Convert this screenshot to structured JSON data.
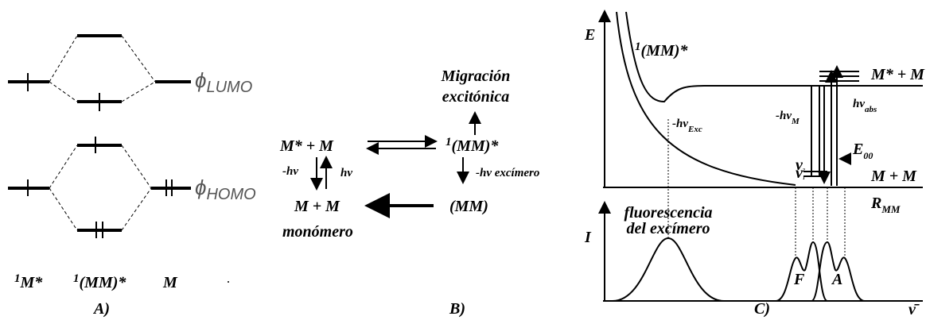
{
  "panel_a": {
    "label": "A)",
    "lumo": {
      "symbol": "ϕ",
      "sub": "LUMO"
    },
    "homo": {
      "symbol": "ϕ",
      "sub": "HOMO"
    },
    "columns": [
      {
        "sup": "1",
        "text": "M*"
      },
      {
        "sup": "1",
        "text": "(MM)*"
      },
      {
        "text": "M"
      }
    ]
  },
  "panel_b": {
    "label": "B)",
    "migration": [
      "Migración",
      "excitónica"
    ],
    "excited_pair": "M* + M",
    "excimer": {
      "sup": "1",
      "text": "(MM)*"
    },
    "emission": "-hv",
    "absorption": "hv",
    "excimer_emission": "-hv excímero",
    "ground_pair": "M + M",
    "ground_excimer": "(MM)",
    "monomer": "monómero"
  },
  "panel_c": {
    "label": "C)",
    "energy_axis": "E",
    "excimer": {
      "sup": "1",
      "text": "(MM)*"
    },
    "excited_pair": "M* + M",
    "exc_emission": {
      "text": "-hv",
      "sub": "Exc"
    },
    "mono_emission": {
      "text": "-hv",
      "sub": "M"
    },
    "absorption": {
      "text": "hv",
      "sub": "abs"
    },
    "e00": {
      "text": "E",
      "sub": "00"
    },
    "ground_pair": "M + M",
    "distance_axis": {
      "text": "R",
      "sub": "MM"
    },
    "intensity_axis": "I",
    "fluorescence": [
      "fluorescencia",
      "del excímero"
    ],
    "band_f": "F",
    "band_a": "A",
    "wavenumber": "ν̄",
    "vib_levels": [
      {
        "text": "v",
        "sub": "2"
      },
      {
        "text": "v",
        "sub": "1"
      }
    ]
  }
}
